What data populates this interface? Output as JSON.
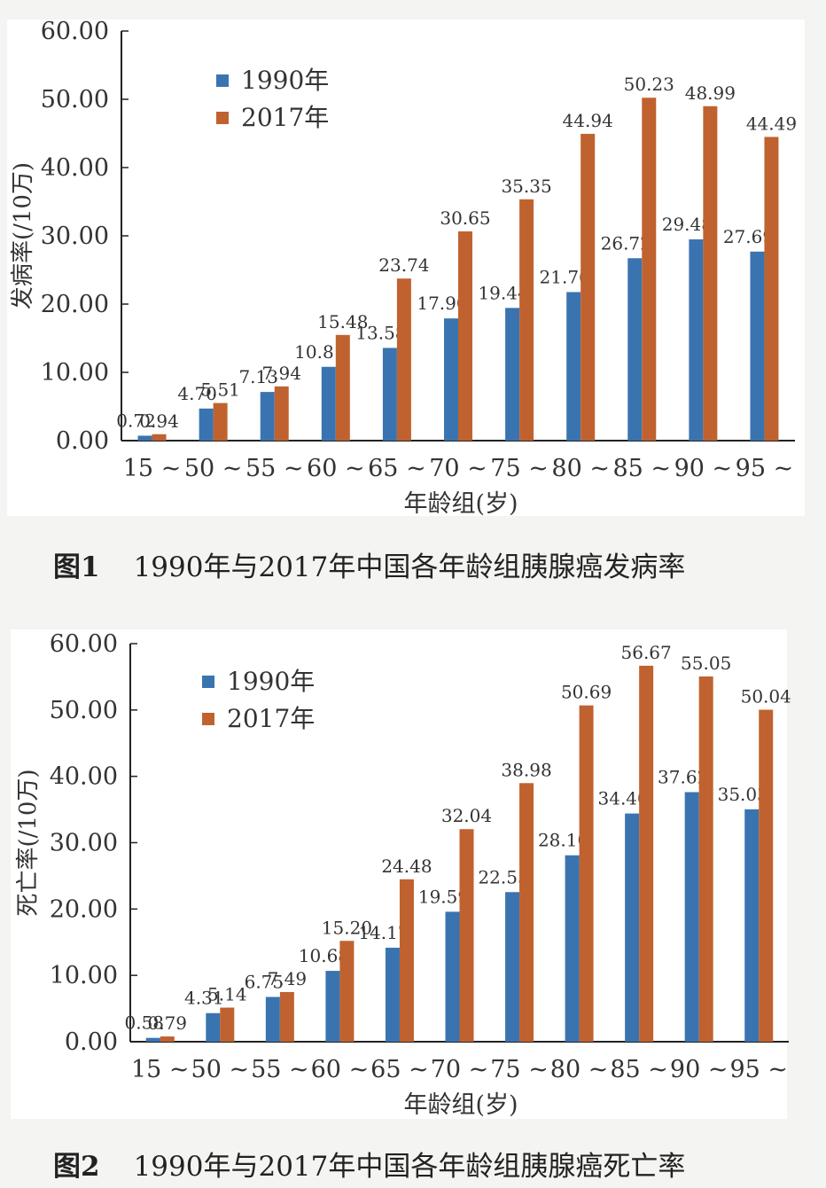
{
  "chart_data": [
    {
      "type": "bar",
      "caption_number": "图1",
      "caption_text": "1990年与2017年中国各年龄组胰腺癌发病率",
      "ylabel": "发病率(/10万)",
      "xlabel": "年龄组(岁)",
      "ylim": [
        0,
        60
      ],
      "yticks": [
        "0.00",
        "10.00",
        "20.00",
        "30.00",
        "40.00",
        "50.00",
        "60.00"
      ],
      "categories": [
        "15 ~",
        "50 ~",
        "55 ~",
        "60 ~",
        "65 ~",
        "70 ~",
        "75 ~",
        "80 ~",
        "85 ~",
        "90 ~",
        "95 ~"
      ],
      "legend_position": "top-left",
      "series": [
        {
          "name": "1990年",
          "color": "#3a74b0",
          "values": [
            0.72,
            4.7,
            7.13,
            10.81,
            13.58,
            17.9,
            19.44,
            21.76,
            26.72,
            29.48,
            27.69
          ],
          "labels": [
            "0.72",
            "4.70",
            "7.13",
            "10.81",
            "13.58",
            "17.90",
            "19.44",
            "21.76",
            "26.72",
            "29.48",
            "27.69"
          ]
        },
        {
          "name": "2017年",
          "color": "#c0622f",
          "values": [
            0.94,
            5.51,
            7.94,
            15.48,
            23.74,
            30.65,
            35.35,
            44.94,
            50.23,
            48.99,
            44.49
          ],
          "labels": [
            "0.94",
            "5.51",
            "7.94",
            "15.48",
            "23.74",
            "30.65",
            "35.35",
            "44.94",
            "50.23",
            "48.99",
            "44.49"
          ]
        }
      ]
    },
    {
      "type": "bar",
      "caption_number": "图2",
      "caption_text": "1990年与2017年中国各年龄组胰腺癌死亡率",
      "ylabel": "死亡率(/10万)",
      "xlabel": "年龄组(岁)",
      "ylim": [
        0,
        60
      ],
      "yticks": [
        "0.00",
        "10.00",
        "20.00",
        "30.00",
        "40.00",
        "50.00",
        "60.00"
      ],
      "categories": [
        "15 ~",
        "50 ~",
        "55 ~",
        "60 ~",
        "65 ~",
        "70 ~",
        "75 ~",
        "80 ~",
        "85 ~",
        "90 ~",
        "95 ~"
      ],
      "legend_position": "top-left",
      "series": [
        {
          "name": "1990年",
          "color": "#3a74b0",
          "values": [
            0.58,
            4.31,
            6.75,
            10.68,
            14.17,
            19.59,
            22.55,
            28.1,
            34.4,
            37.62,
            35.03
          ],
          "labels": [
            "0.58",
            "4.31",
            "6.75",
            "10.68",
            "14.17",
            "19.59",
            "22.55",
            "28.10",
            "34.40",
            "37.62",
            "35.03"
          ]
        },
        {
          "name": "2017年",
          "color": "#c0622f",
          "values": [
            0.79,
            5.14,
            7.49,
            15.2,
            24.48,
            32.04,
            38.98,
            50.69,
            56.67,
            55.05,
            50.04
          ],
          "labels": [
            "0.79",
            "5.14",
            "7.49",
            "15.20",
            "24.48",
            "32.04",
            "38.98",
            "50.69",
            "56.67",
            "55.05",
            "50.04"
          ]
        }
      ]
    }
  ]
}
